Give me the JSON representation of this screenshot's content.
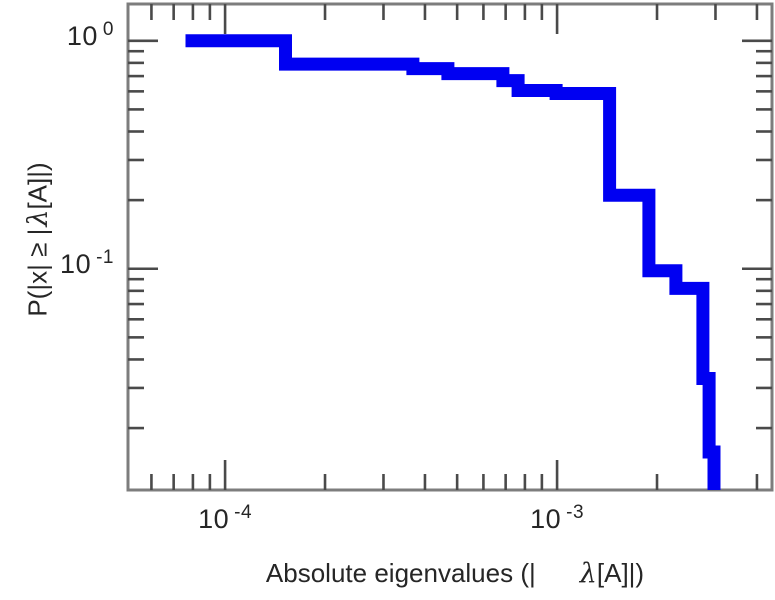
{
  "figure": {
    "background": "#ffffff"
  },
  "style": {
    "curve_color": "#0000f2",
    "curve_width": 13,
    "spine_color": "#7d7d7d",
    "tick_color": "#4a4a4a",
    "text_color": "#262626",
    "spine_width": 3,
    "tick_width": 2.6,
    "major_tick_len": 30,
    "minor_tick_len": 16
  },
  "chart_data": {
    "type": "line",
    "subtype": "empirical-ccdf-step",
    "title": "",
    "xlabel": {
      "pre": "Absolute eigenvalues (|",
      "lambda": "λ",
      "post": "[A]|)"
    },
    "ylabel": {
      "pre": "P(|x| ≥ |",
      "lambda": "λ",
      "post": "[A]|)"
    },
    "x_scale": "log",
    "y_scale": "log",
    "xlim": [
      5.1e-05,
      0.00444
    ],
    "ylim": [
      0.0107,
      1.45
    ],
    "grid": false,
    "legend": false,
    "x_major_ticks": [
      {
        "value": 0.0001,
        "base": "10",
        "exp": "-4"
      },
      {
        "value": 0.001,
        "base": "10",
        "exp": "-3"
      }
    ],
    "y_major_ticks": [
      {
        "value": 1,
        "base": "10",
        "exp": "0"
      },
      {
        "value": 0.1,
        "base": "10",
        "exp": "-1"
      }
    ],
    "minor_tick_decades_x": [
      -5,
      -4,
      -3,
      -2
    ],
    "minor_tick_decades_y": [
      -3,
      -2,
      -1,
      0
    ],
    "series": [
      {
        "name": "eigenvalue-ccdf",
        "color": "#0000f2",
        "start": {
          "x": 7.6e-05,
          "p": 1.0
        },
        "steps": [
          {
            "x": 0.000152,
            "p": 0.79
          },
          {
            "x": 0.000368,
            "p": 0.755
          },
          {
            "x": 0.000469,
            "p": 0.718
          },
          {
            "x": 0.000687,
            "p": 0.669
          },
          {
            "x": 0.000763,
            "p": 0.605
          },
          {
            "x": 0.000993,
            "p": 0.587
          },
          {
            "x": 0.00144,
            "p": 0.21
          },
          {
            "x": 0.00189,
            "p": 0.098
          },
          {
            "x": 0.00228,
            "p": 0.082
          },
          {
            "x": 0.00275,
            "p": 0.033
          },
          {
            "x": 0.00287,
            "p": 0.0157
          },
          {
            "x": 0.00297,
            "p": 0.0107
          }
        ]
      }
    ]
  }
}
